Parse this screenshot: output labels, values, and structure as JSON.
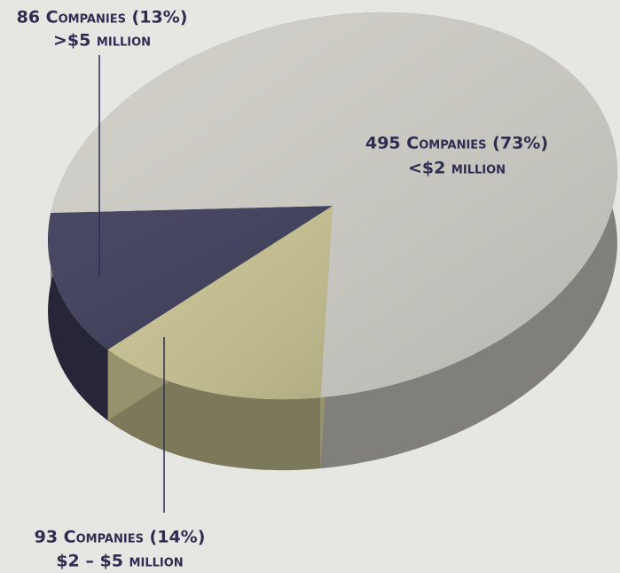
{
  "chart_data": {
    "type": "pie",
    "categories": [
      ">$5 million",
      "<$2 million",
      "$2 – $5 million"
    ],
    "values": [
      86,
      495,
      93
    ],
    "value_labels": [
      "86 Companies (13%)",
      "495 Companies (73%)",
      "93 Companies (14%)"
    ],
    "colors": [
      "#3f3e5c",
      "#cfcdc6",
      "#c8c393"
    ]
  }
}
